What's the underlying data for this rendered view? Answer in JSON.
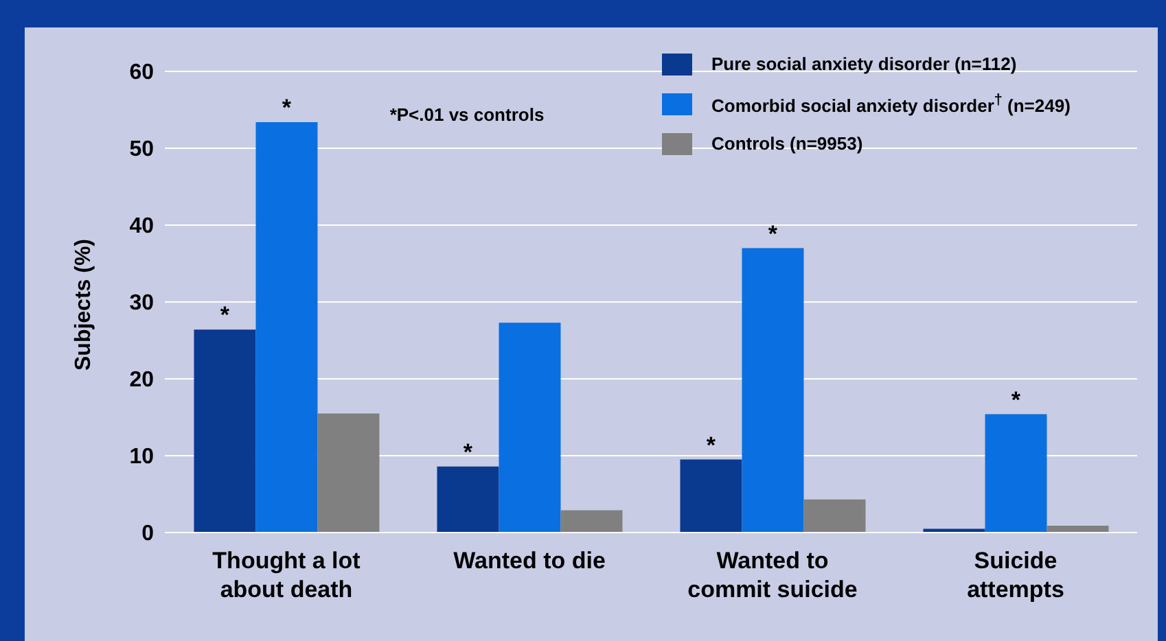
{
  "chart_data": {
    "type": "bar",
    "ylabel": "Subjects (%)",
    "categories": [
      "Thought a lot\nabout death",
      "Wanted to die",
      "Wanted to\ncommit suicide",
      "Suicide\nattempts"
    ],
    "series": [
      {
        "name": "Pure social anxiety disorder (n=112)",
        "color": "#0a3a8f",
        "values": [
          26.4,
          8.6,
          9.5,
          0.5
        ],
        "value_labels": [
          "*",
          "*",
          "*",
          null
        ]
      },
      {
        "name": "Comorbid social anxiety disorder$^{†}$ (n=249)",
        "color": "#0a6fe0",
        "values": [
          53.4,
          27.3,
          37.0,
          15.4
        ],
        "value_labels": [
          "*",
          null,
          "*",
          "*"
        ]
      },
      {
        "name": "Controls (n=9953)",
        "color": "#808080",
        "values": [
          15.5,
          2.9,
          4.3,
          0.9
        ]
      }
    ],
    "ylim": [
      0,
      60
    ],
    "yticks": [
      0,
      10,
      20,
      30,
      40,
      50,
      60
    ],
    "grid": "y",
    "legend": "top right",
    "annotations": [
      "*P<.01 vs controls"
    ]
  }
}
